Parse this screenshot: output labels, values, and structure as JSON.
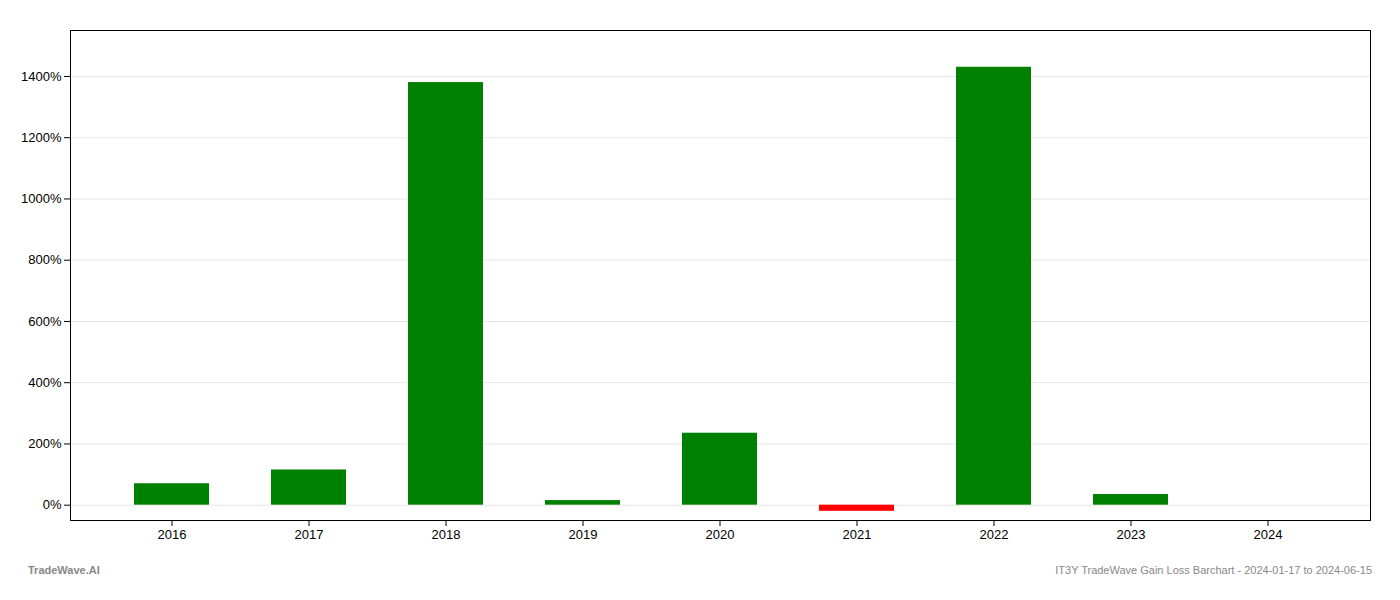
{
  "chart_data": {
    "type": "bar",
    "categories": [
      "2016",
      "2017",
      "2018",
      "2019",
      "2020",
      "2021",
      "2022",
      "2023",
      "2024"
    ],
    "values": [
      70,
      115,
      1380,
      15,
      235,
      -20,
      1430,
      35,
      0
    ],
    "colors": [
      "#008000",
      "#008000",
      "#008000",
      "#008000",
      "#008000",
      "#ff0000",
      "#008000",
      "#008000",
      "#008000"
    ],
    "ylim": [
      -50,
      1550
    ],
    "yticks": [
      {
        "value": 0,
        "label": "0%"
      },
      {
        "value": 200,
        "label": "200%"
      },
      {
        "value": 400,
        "label": "400%"
      },
      {
        "value": 600,
        "label": "600%"
      },
      {
        "value": 800,
        "label": "800%"
      },
      {
        "value": 1000,
        "label": "1000%"
      },
      {
        "value": 1200,
        "label": "1200%"
      },
      {
        "value": 1400,
        "label": "1400%"
      }
    ],
    "grid": true,
    "annotations": [
      "TradeWave.AI",
      "IT3Y TradeWave Gain Loss Barchart - 2024-01-17 to 2024-06-15"
    ]
  }
}
